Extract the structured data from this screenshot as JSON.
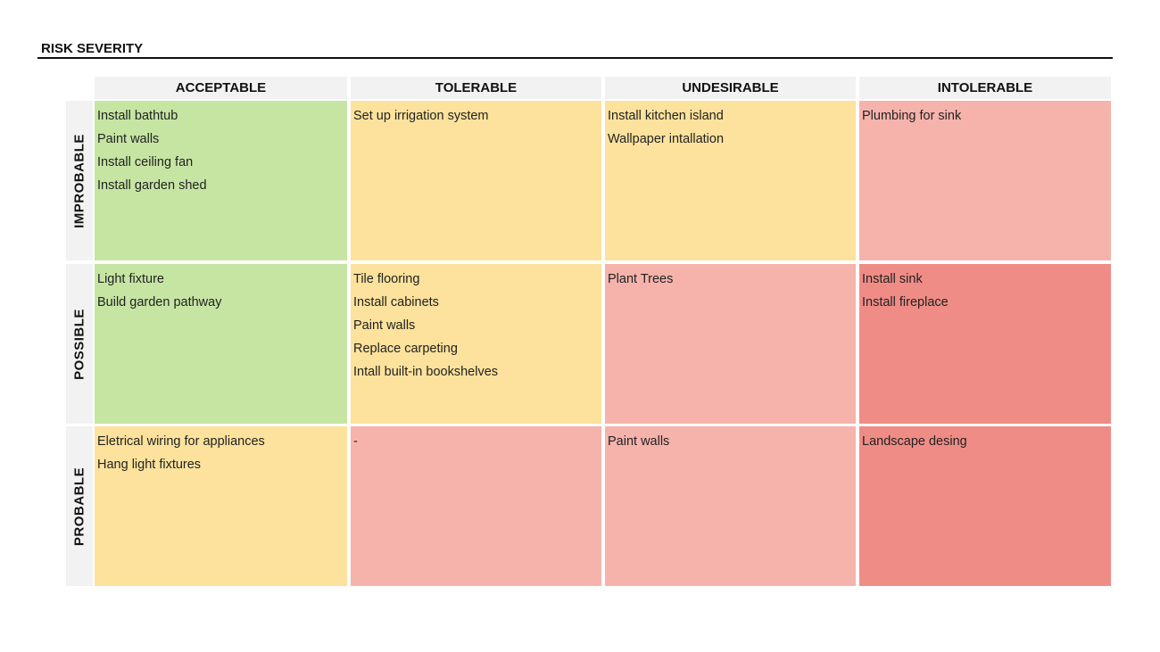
{
  "header": {
    "title": "RISK SEVERITY"
  },
  "columns": [
    "ACCEPTABLE",
    "TOLERABLE",
    "UNDESIRABLE",
    "INTOLERABLE"
  ],
  "rows": [
    {
      "label": "IMPROBABLE",
      "cells": [
        {
          "color": "#c6e5a3",
          "items": [
            "Install bathtub",
            "Paint walls",
            "Install ceiling fan",
            "Install garden shed"
          ]
        },
        {
          "color": "#fce29c",
          "items": [
            "Set up irrigation system"
          ]
        },
        {
          "color": "#fce29c",
          "items": [
            "Install kitchen island",
            "Wallpaper intallation"
          ]
        },
        {
          "color": "#f6b3ac",
          "items": [
            "Plumbing for sink"
          ]
        }
      ]
    },
    {
      "label": "POSSIBLE",
      "cells": [
        {
          "color": "#c6e5a3",
          "items": [
            "Light fixture",
            "Build garden pathway"
          ]
        },
        {
          "color": "#fce29c",
          "items": [
            "Tile flooring",
            "Install cabinets",
            "Paint walls",
            "Replace carpeting",
            "Intall built-in bookshelves"
          ]
        },
        {
          "color": "#f6b3ac",
          "items": [
            "Plant Trees"
          ]
        },
        {
          "color": "#f08c86",
          "items": [
            "Install sink",
            "Install fireplace"
          ]
        }
      ]
    },
    {
      "label": "PROBABLE",
      "cells": [
        {
          "color": "#fce29c",
          "items": [
            "Eletrical wiring for appliances",
            "Hang light fixtures"
          ]
        },
        {
          "color": "#f6b3ac",
          "items": [
            "-"
          ]
        },
        {
          "color": "#f6b3ac",
          "items": [
            "Paint walls"
          ]
        },
        {
          "color": "#f08c86",
          "items": [
            "Landscape desing"
          ]
        }
      ]
    }
  ]
}
